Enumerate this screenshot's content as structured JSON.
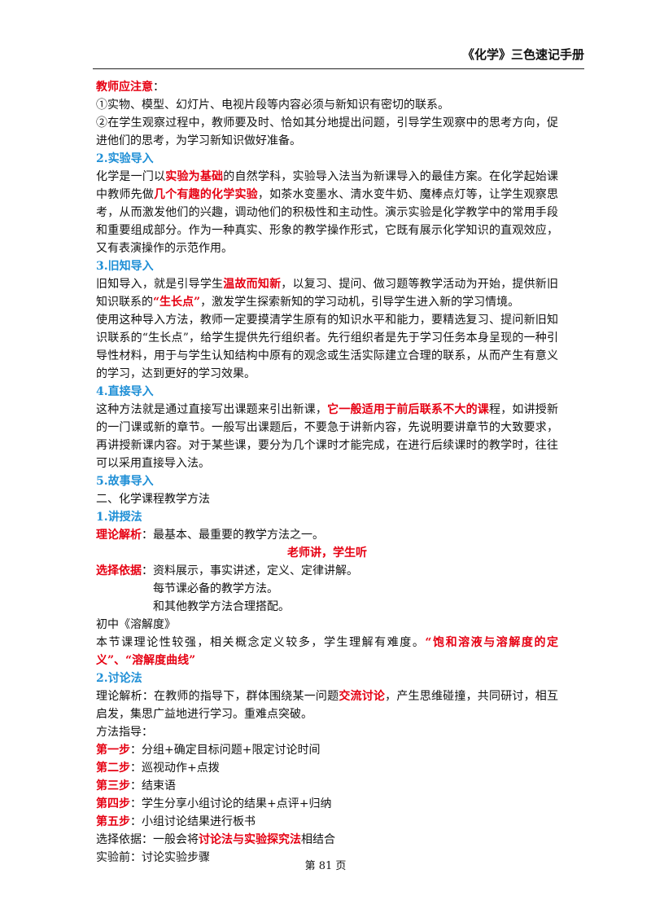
{
  "header": {
    "title": "《化学》三色速记手册"
  },
  "footer": {
    "page": "第 81 页"
  },
  "lines": [
    [
      {
        "t": "教师应注意",
        "c": "red"
      },
      {
        "t": "："
      }
    ],
    [
      {
        "t": "①实物、模型、幻灯片、电视片段等内容必须与新知识有密切的联系。"
      }
    ],
    [
      {
        "t": "②在学生观察过程中，教师要及时、恰如其分地提出问题，引导学生观察中的思考方向，促进他们的思考，为学习新知识做好准备。"
      }
    ],
    [
      {
        "t": "2.实验导入",
        "c": "blue"
      }
    ],
    [
      {
        "t": "化学是一门以"
      },
      {
        "t": "实验为基础",
        "c": "red"
      },
      {
        "t": "的自然学科，实验导入法当为新课导入的最佳方案。在化学起始课中教师先做"
      },
      {
        "t": "几个有趣的化学实验",
        "c": "red"
      },
      {
        "t": "，如茶水变墨水、清水变牛奶、魔棒点灯等，让学生观察思考，从而激发他们的兴趣，调动他们的积极性和主动性。演示实验是化学教学中的常用手段和重要组成部分。作为一种真实、形象的教学操作形式，它既有展示化学知识的直观效应，又有表演操作的示范作用。"
      }
    ],
    [
      {
        "t": "3.旧知导入",
        "c": "blue"
      }
    ],
    [
      {
        "t": "旧知导入，就是引导学生"
      },
      {
        "t": "温故而知新",
        "c": "red"
      },
      {
        "t": "，以复习、提问、做习题等教学活动为开始，提供新旧知识联系的"
      },
      {
        "t": "“生长点”",
        "c": "red"
      },
      {
        "t": "，激发学生探索新知的学习动机，引导学生进入新的学习情境。"
      }
    ],
    [
      {
        "t": "使用这种导入方法，教师一定要摸清学生原有的知识水平和能力，要精选复习、提问新旧知识联系的“生长点”，给学生提供先行组织者。先行组织者是先于学习任务本身呈现的一种引导性材料，用于与学生认知结构中原有的观念或生活实际建立合理的联系，从而产生有意义的学习，达到更好的学习效果。"
      }
    ],
    [
      {
        "t": "4.直接导入",
        "c": "blue"
      }
    ],
    [
      {
        "t": "这种方法就是通过直接写出课题来引出新课，"
      },
      {
        "t": "它一般适用于前后联系不大的课",
        "c": "red"
      },
      {
        "t": "程，如讲授新的一门课或新的章节。一般写出课题后，不要急于讲新内容，先说明要讲章节的大致要求，再讲授新课内容。对于某些课，要分为几个课时才能完成，在进行后续课时的教学时，往往可以采用直接导入法。"
      }
    ],
    [
      {
        "t": "5.故事导入",
        "c": "blue"
      }
    ],
    [
      {
        "t": "二、化学课程教学方法"
      }
    ],
    [
      {
        "t": "1.讲授法",
        "c": "blue"
      }
    ],
    [
      {
        "t": "理论解析",
        "c": "red"
      },
      {
        "t": "：最基本、最重要的教学方法之一。"
      }
    ],
    [
      {
        "t": "老师讲，学生听",
        "c": "red"
      }
    ],
    [
      {
        "t": "选择依据",
        "c": "red"
      },
      {
        "t": "：资料展示，事实讲述，定义、定律讲解。"
      }
    ],
    [
      {
        "t": "每节课必备的教学方法。"
      }
    ],
    [
      {
        "t": "和其他教学方法合理搭配。"
      }
    ],
    [
      {
        "t": "初中《溶解度》"
      }
    ],
    [
      {
        "t": "本节课理论性较强，相关概念定义较多，学生理解有难度。"
      },
      {
        "t": "“饱和溶液与溶解度的定义”、“溶解度曲线”",
        "c": "red"
      }
    ],
    [
      {
        "t": "2.讨论法",
        "c": "blue"
      }
    ],
    [
      {
        "t": "理论解析：在教师的指导下，群体围绕某一问题"
      },
      {
        "t": "交流讨论",
        "c": "red"
      },
      {
        "t": "，产生思维碰撞，共同研讨，相互启发，集思广益地进行学习。重难点突破。"
      }
    ],
    [
      {
        "t": "方法指导："
      }
    ],
    [
      {
        "t": "第一步",
        "c": "red"
      },
      {
        "t": "：分组+确定目标问题+限定讨论时间"
      }
    ],
    [
      {
        "t": "第二步",
        "c": "red"
      },
      {
        "t": "：巡视动作+点拨"
      }
    ],
    [
      {
        "t": "第三步",
        "c": "red"
      },
      {
        "t": "：结束语"
      }
    ],
    [
      {
        "t": "第四步",
        "c": "red"
      },
      {
        "t": "：学生分享小组讨论的结果+点评+归纳"
      }
    ],
    [
      {
        "t": "第五步",
        "c": "red"
      },
      {
        "t": "：小组讨论结果进行板书"
      }
    ],
    [
      {
        "t": "选择依据：一般会将"
      },
      {
        "t": "讨论法与实验探究法",
        "c": "red"
      },
      {
        "t": "相结合"
      }
    ],
    [
      {
        "t": "实验前：讨论实验步骤"
      }
    ]
  ]
}
